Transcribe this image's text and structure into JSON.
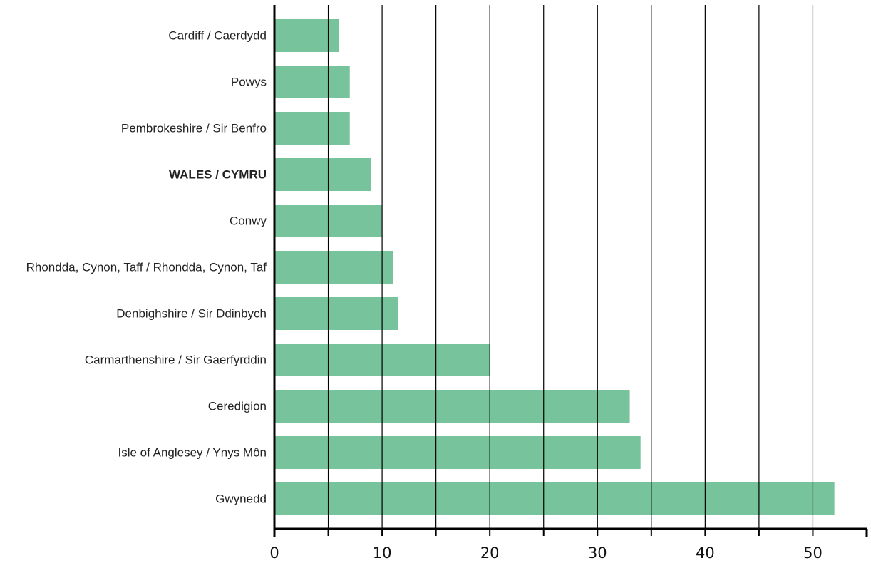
{
  "colors": {
    "bar": "#77c49c",
    "grid": "#000000",
    "axis": "#000000",
    "text": "#222222",
    "background": "#ffffff"
  },
  "chart_data": {
    "type": "bar",
    "orientation": "horizontal",
    "title": "",
    "xlabel": "",
    "ylabel": "",
    "categories": [
      "Cardiff / Caerdydd",
      "Powys",
      "Pembrokeshire / Sir Benfro",
      "WALES / CYMRU",
      "Conwy",
      "Rhondda, Cynon, Taff / Rhondda, Cynon, Taf",
      "Denbighshire / Sir Ddinbych",
      "Carmarthenshire / Sir Gaerfyrddin",
      "Ceredigion",
      "Isle of Anglesey / Ynys Môn",
      "Gwynedd"
    ],
    "values": [
      6,
      7,
      7,
      9,
      10,
      11,
      11.5,
      20,
      33,
      34,
      52
    ],
    "highlighted_category": "WALES / CYMRU",
    "xlim": [
      0,
      55
    ],
    "xticks": [
      0,
      10,
      20,
      30,
      40,
      50
    ],
    "gridlines": [
      5,
      10,
      15,
      20,
      25,
      30,
      35,
      40,
      45,
      50
    ],
    "grid": true,
    "legend": "none"
  }
}
